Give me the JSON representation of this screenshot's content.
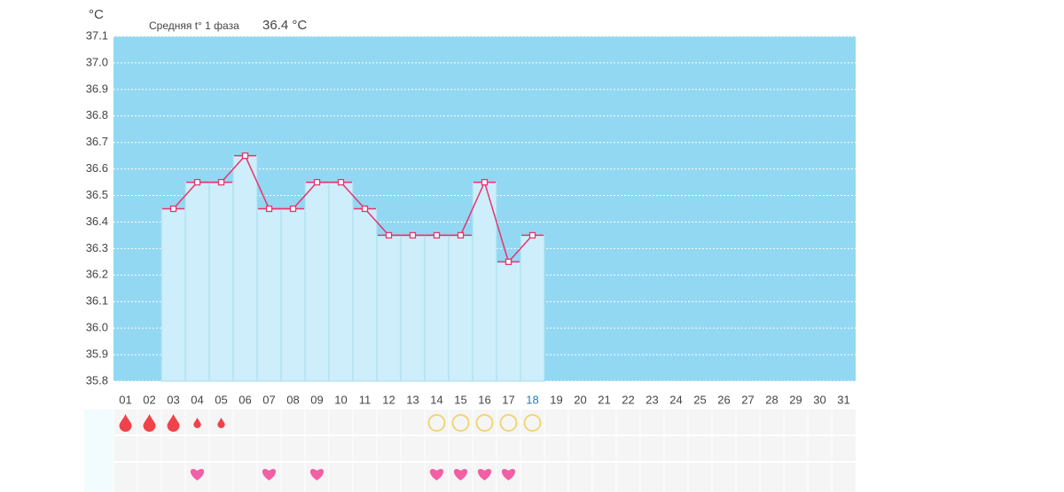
{
  "chart_data": {
    "type": "line",
    "unit_label": "°C",
    "subtitle": "Средняя t° 1 фаза",
    "average_label": "36.4 °C",
    "categories": [
      "01",
      "02",
      "03",
      "04",
      "05",
      "06",
      "07",
      "08",
      "09",
      "10",
      "11",
      "12",
      "13",
      "14",
      "15",
      "16",
      "17",
      "18",
      "19",
      "20",
      "21",
      "22",
      "23",
      "24",
      "25",
      "26",
      "27",
      "28",
      "29",
      "30",
      "31"
    ],
    "values": [
      null,
      null,
      36.45,
      36.55,
      36.55,
      36.65,
      36.45,
      36.45,
      36.55,
      36.55,
      36.45,
      36.35,
      36.35,
      36.35,
      36.35,
      36.55,
      36.25,
      36.35,
      null,
      null,
      null,
      null,
      null,
      null,
      null,
      null,
      null,
      null,
      null,
      null,
      null
    ],
    "color": "#e8336d",
    "bar_color": "#cdeefa",
    "background": "#93d8f2",
    "ylim": [
      35.8,
      37.1
    ],
    "yticks": [
      35.8,
      35.9,
      {
        "value": 36,
        "label": "36.0"
      },
      36.1,
      36.2,
      36.3,
      36.4,
      36.5,
      36.6,
      36.7,
      36.8,
      36.9,
      {
        "value": 37,
        "label": "37.0"
      },
      37.1
    ],
    "grid": true,
    "today_index": 17,
    "today_color": "#1a7fc0",
    "icon_rows": [
      {
        "icon": "drop",
        "color": "#f0424a",
        "days": [
          0,
          1,
          2,
          3,
          4
        ],
        "sizes": [
          1,
          1,
          1,
          0.6,
          0.6
        ]
      },
      {
        "icon": "ring",
        "color": "#f2d36b",
        "days": [
          13,
          14,
          15,
          16,
          17
        ]
      },
      {
        "icon": "heart",
        "color": "#f25fa6",
        "days": [
          3,
          6,
          8,
          13,
          14,
          15,
          16
        ]
      }
    ]
  }
}
